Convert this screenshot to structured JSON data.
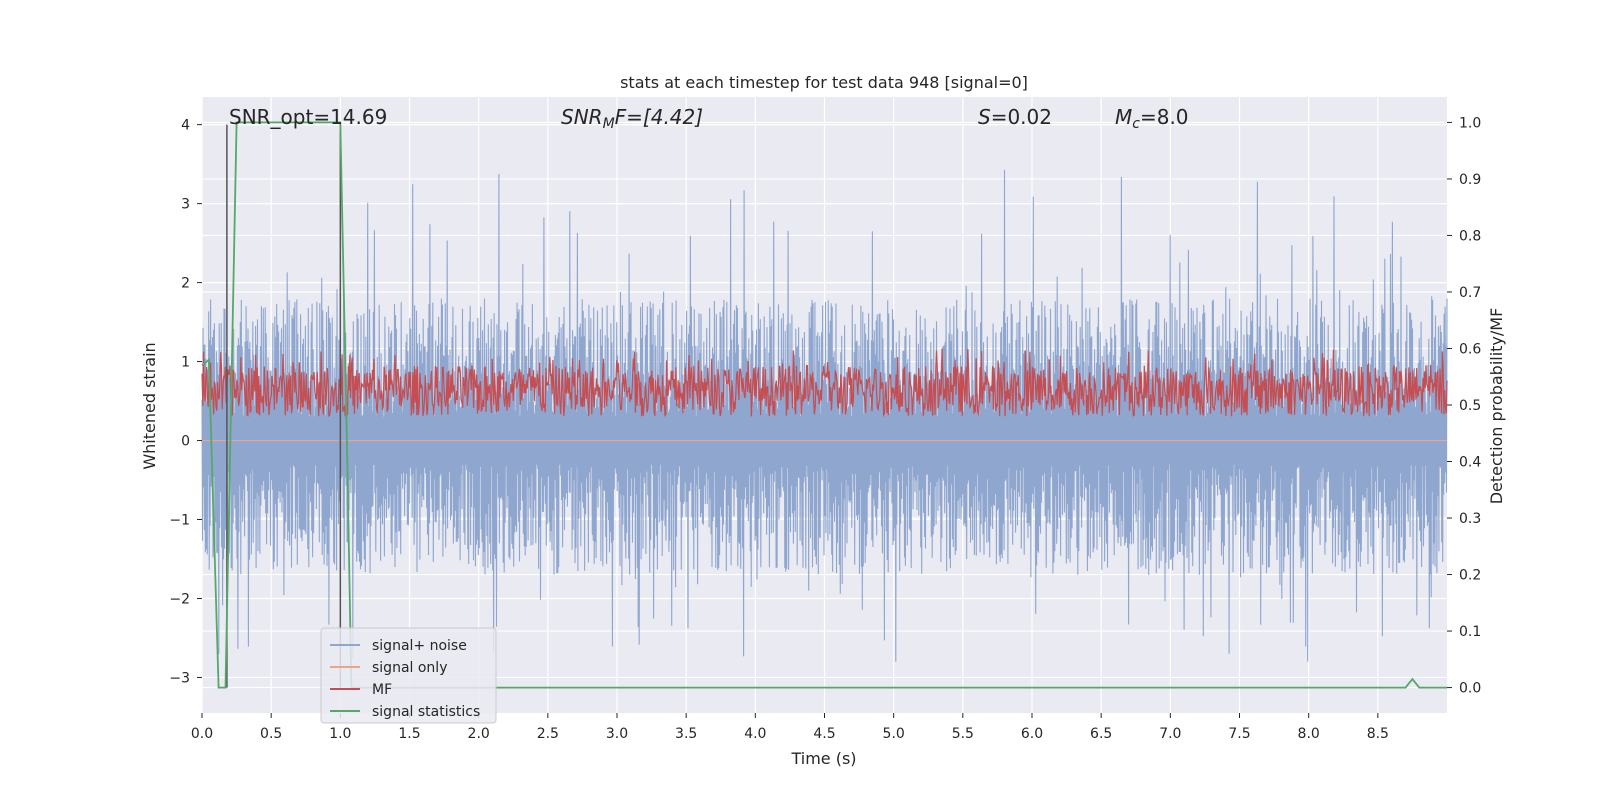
{
  "chart_data": {
    "type": "line",
    "title": "stats at each timestep for test data 948 [signal=0]",
    "xlabel": "Time (s)",
    "ylabel": "Whitened strain",
    "y2label": "Detection probability/MF",
    "xlim": [
      0.0,
      9.0
    ],
    "ylim": [
      -3.45,
      4.35
    ],
    "y2lim": [
      -0.045,
      1.045
    ],
    "x_ticks": [
      "0.0",
      "0.5",
      "1.0",
      "1.5",
      "2.0",
      "2.5",
      "3.0",
      "3.5",
      "4.0",
      "4.5",
      "5.0",
      "5.5",
      "6.0",
      "6.5",
      "7.0",
      "7.5",
      "8.0",
      "8.5"
    ],
    "y_ticks": [
      "4",
      "3",
      "2",
      "1",
      "0",
      "−1",
      "−2",
      "−3"
    ],
    "y2_ticks": [
      "1.0",
      "0.9",
      "0.8",
      "0.7",
      "0.6",
      "0.5",
      "0.4",
      "0.3",
      "0.2",
      "0.1",
      "0.0"
    ],
    "grid": true,
    "legend_position": "lower-left",
    "annotations": {
      "snr_opt": "SNR_opt=14.69",
      "snr_mf_main": "SNR",
      "snr_mf_sub": "M",
      "snr_mf_rest": "F=[4.42]",
      "s_main": "S",
      "s_rest": "=0.02",
      "mc_main": "M",
      "mc_sub": "c",
      "mc_rest": "=8.0"
    },
    "series": [
      {
        "name": "signal+ noise",
        "color": "#8fa6cf",
        "description_axis": "left",
        "noise_envelope": {
          "typical_max": 1.8,
          "typical_min": -1.7,
          "peak_max": 4.0,
          "peak_min": -3.1
        }
      },
      {
        "name": "signal only",
        "color": "#e8a58c",
        "description_axis": "left",
        "values_constant": 0.0
      },
      {
        "name": "MF",
        "color": "#c44e52",
        "description_axis": "right",
        "band": [
          0.48,
          0.57
        ]
      },
      {
        "name": "signal statistics",
        "color": "#55a868",
        "description_axis": "right",
        "x": [
          0.0,
          0.05,
          0.12,
          0.17,
          0.25,
          0.5,
          1.0,
          1.05,
          1.08,
          1.2,
          8.7,
          8.75,
          8.8,
          9.0
        ],
        "y": [
          0.57,
          0.58,
          0.0,
          0.0,
          1.0,
          1.0,
          1.0,
          0.4,
          0.0,
          0.0,
          0.0,
          0.015,
          0.0,
          0.0
        ]
      }
    ],
    "vertical_markers": {
      "color": "#555555",
      "x": [
        0.18,
        1.0
      ]
    }
  }
}
